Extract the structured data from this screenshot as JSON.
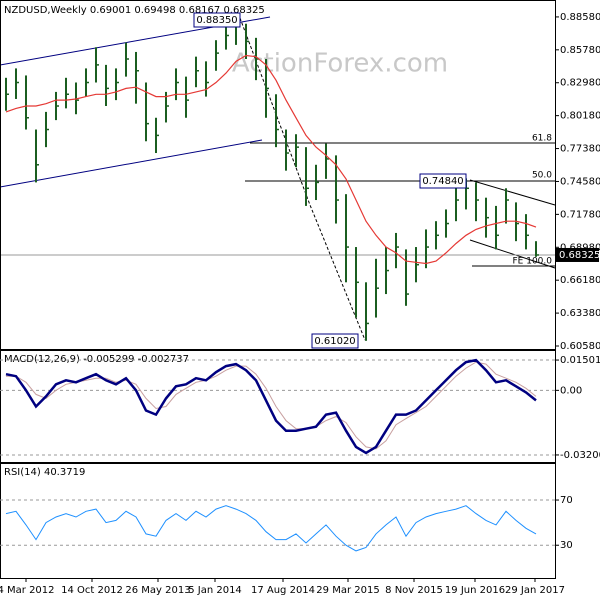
{
  "chart_data": [
    {
      "type": "ohlc",
      "title": "NZDUSD,Weekly  0.69001 0.69498 0.68167 0.68325",
      "watermark": "ActionForex.com",
      "color": "#1b5e20",
      "x": [
        -10,
        -5,
        0,
        5,
        10,
        15,
        20,
        25,
        30,
        35,
        40,
        45,
        50,
        55,
        60,
        65,
        70,
        75,
        80,
        85,
        90,
        95,
        100,
        105,
        110,
        115,
        120,
        125,
        130,
        135,
        140,
        145,
        150,
        155,
        160,
        165,
        170,
        175,
        180,
        185,
        190,
        195,
        200,
        205,
        210,
        215,
        220,
        225,
        230,
        235,
        240,
        245,
        250,
        255
      ],
      "high": [
        0.834,
        0.842,
        0.836,
        0.79,
        0.805,
        0.822,
        0.834,
        0.83,
        0.842,
        0.86,
        0.845,
        0.842,
        0.864,
        0.856,
        0.83,
        0.8,
        0.822,
        0.842,
        0.835,
        0.852,
        0.848,
        0.866,
        0.88,
        0.8835,
        0.88,
        0.868,
        0.85,
        0.82,
        0.79,
        0.786,
        0.775,
        0.76,
        0.778,
        0.768,
        0.735,
        0.69,
        0.66,
        0.68,
        0.69,
        0.702,
        0.688,
        0.69,
        0.705,
        0.712,
        0.722,
        0.742,
        0.7484,
        0.745,
        0.732,
        0.725,
        0.74,
        0.728,
        0.718,
        0.69498
      ],
      "low": [
        0.806,
        0.816,
        0.79,
        0.745,
        0.775,
        0.798,
        0.808,
        0.803,
        0.818,
        0.83,
        0.81,
        0.815,
        0.835,
        0.812,
        0.78,
        0.77,
        0.796,
        0.815,
        0.8,
        0.826,
        0.818,
        0.84,
        0.858,
        0.862,
        0.85,
        0.832,
        0.8,
        0.775,
        0.755,
        0.758,
        0.725,
        0.73,
        0.748,
        0.71,
        0.66,
        0.63,
        0.6102,
        0.63,
        0.65,
        0.672,
        0.64,
        0.66,
        0.672,
        0.688,
        0.698,
        0.712,
        0.722,
        0.712,
        0.698,
        0.688,
        0.71,
        0.695,
        0.688,
        0.68167
      ],
      "close": [
        0.82,
        0.83,
        0.8,
        0.76,
        0.79,
        0.81,
        0.82,
        0.815,
        0.83,
        0.845,
        0.825,
        0.83,
        0.85,
        0.84,
        0.795,
        0.785,
        0.81,
        0.83,
        0.815,
        0.84,
        0.83,
        0.855,
        0.87,
        0.878,
        0.865,
        0.85,
        0.825,
        0.79,
        0.77,
        0.775,
        0.74,
        0.745,
        0.765,
        0.73,
        0.69,
        0.66,
        0.625,
        0.655,
        0.67,
        0.69,
        0.65,
        0.675,
        0.69,
        0.7,
        0.71,
        0.73,
        0.74,
        0.73,
        0.715,
        0.7,
        0.73,
        0.71,
        0.7,
        0.68325
      ],
      "moving_average": {
        "color": "#e53935",
        "values": [
          0.805,
          0.808,
          0.81,
          0.81,
          0.812,
          0.815,
          0.815,
          0.816,
          0.818,
          0.82,
          0.82,
          0.822,
          0.825,
          0.826,
          0.822,
          0.818,
          0.818,
          0.82,
          0.82,
          0.822,
          0.824,
          0.83,
          0.838,
          0.848,
          0.853,
          0.852,
          0.845,
          0.832,
          0.815,
          0.8,
          0.785,
          0.775,
          0.768,
          0.76,
          0.748,
          0.73,
          0.712,
          0.7,
          0.69,
          0.685,
          0.678,
          0.677,
          0.676,
          0.678,
          0.685,
          0.693,
          0.7,
          0.705,
          0.708,
          0.71,
          0.712,
          0.712,
          0.71,
          0.707
        ]
      },
      "xlim": [
        -13,
        264.5
      ],
      "ylim": [
        0.6041,
        0.8985
      ],
      "yticks": [
        {
          "value": 0.8858,
          "label": "0.88580"
        },
        {
          "value": 0.8578,
          "label": "0.85780"
        },
        {
          "value": 0.8298,
          "label": "0.82980"
        },
        {
          "value": 0.8018,
          "label": "0.80180"
        },
        {
          "value": 0.7738,
          "label": "0.77380"
        },
        {
          "value": 0.7458,
          "label": "0.74580"
        },
        {
          "value": 0.7178,
          "label": "0.71780"
        },
        {
          "value": 0.6898,
          "label": "0.68980"
        },
        {
          "value": 0.6618,
          "label": "0.66180"
        },
        {
          "value": 0.6338,
          "label": "0.63380"
        },
        {
          "value": 0.6058,
          "label": "0.60580"
        }
      ],
      "last_price": {
        "value": 0.68325,
        "label": "0.68325"
      },
      "annotations": [
        "0.88350",
        "0.74840",
        "0.61020",
        "61.8",
        "50.0",
        "FE 100.0"
      ]
    },
    {
      "type": "macd",
      "title": "MACD(12,26,9) -0.005299 -0.002737",
      "macd": {
        "color": "#000080",
        "values": [
          0.008,
          0.007,
          0.0,
          -0.008,
          -0.003,
          0.003,
          0.005,
          0.004,
          0.006,
          0.008,
          0.005,
          0.003,
          0.006,
          0.0,
          -0.01,
          -0.012,
          -0.004,
          0.002,
          0.003,
          0.006,
          0.005,
          0.009,
          0.012,
          0.013,
          0.01,
          0.005,
          -0.005,
          -0.015,
          -0.02,
          -0.02,
          -0.019,
          -0.018,
          -0.012,
          -0.011,
          -0.02,
          -0.028,
          -0.031,
          -0.028,
          -0.02,
          -0.012,
          -0.012,
          -0.01,
          -0.005,
          0.0,
          0.005,
          0.01,
          0.014,
          0.015,
          0.01,
          0.004,
          0.005,
          0.002,
          -0.001,
          -0.005
        ]
      },
      "signal": {
        "color": "#c8a0a0",
        "values": [
          0.007,
          0.007,
          0.004,
          -0.002,
          -0.004,
          0.0,
          0.003,
          0.004,
          0.005,
          0.006,
          0.006,
          0.004,
          0.005,
          0.003,
          -0.004,
          -0.009,
          -0.008,
          -0.002,
          0.001,
          0.004,
          0.005,
          0.007,
          0.01,
          0.012,
          0.012,
          0.008,
          0.001,
          -0.008,
          -0.015,
          -0.019,
          -0.019,
          -0.018,
          -0.015,
          -0.013,
          -0.016,
          -0.023,
          -0.028,
          -0.029,
          -0.025,
          -0.017,
          -0.014,
          -0.011,
          -0.008,
          -0.003,
          0.002,
          0.007,
          0.011,
          0.014,
          0.013,
          0.008,
          0.006,
          0.004,
          0.001,
          -0.003
        ]
      },
      "ylim": [
        -0.0355,
        0.019
      ],
      "yticks": [
        0.015012,
        {
          "value": 0,
          "label": "0.00"
        },
        -0.032007
      ]
    },
    {
      "type": "rsi",
      "title": "RSI(14) 40.3719",
      "color": "#1e90ff",
      "values": [
        58,
        60,
        48,
        35,
        50,
        55,
        58,
        55,
        60,
        62,
        50,
        52,
        60,
        55,
        40,
        38,
        52,
        58,
        52,
        60,
        55,
        62,
        65,
        62,
        58,
        52,
        42,
        35,
        35,
        40,
        32,
        40,
        48,
        38,
        30,
        25,
        28,
        40,
        48,
        55,
        38,
        50,
        55,
        58,
        60,
        62,
        65,
        58,
        52,
        48,
        60,
        52,
        45,
        40
      ],
      "ylim": [
        1,
        101
      ],
      "yticks": [
        70,
        30
      ],
      "xticks": [
        {
          "value": 0,
          "label": "4 Mar 2012"
        },
        {
          "value": 33,
          "label": "14 Oct 2012"
        },
        {
          "value": 66,
          "label": "26 May 2013"
        },
        {
          "value": 94.5,
          "label": "5 Jan 2014"
        },
        {
          "value": 128.5,
          "label": "17 Aug 2014"
        },
        {
          "value": 161,
          "label": "29 Mar 2015"
        },
        {
          "value": 194,
          "label": "8 Nov 2015"
        },
        {
          "value": 224.5,
          "label": "19 Jun 2016"
        },
        {
          "value": 254.5,
          "label": "29 Jan 2017"
        }
      ]
    }
  ]
}
